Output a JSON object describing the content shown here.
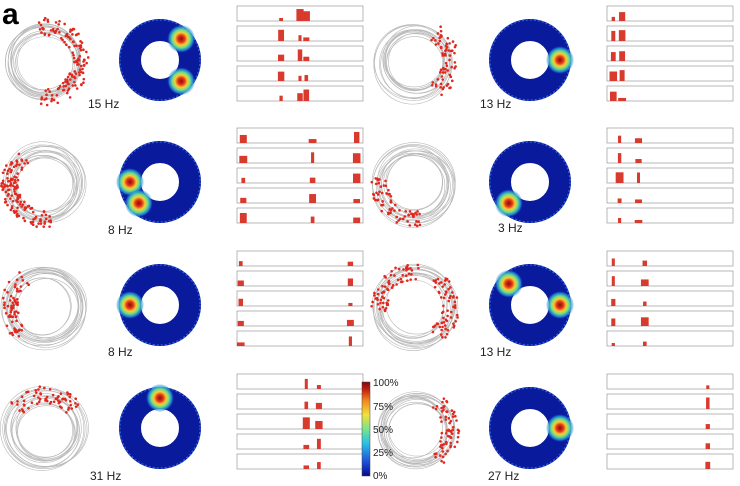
{
  "figure": {
    "panel_letter": "a",
    "colorbar_ticks": [
      "100%",
      "75%",
      "50%",
      "25%",
      "0%"
    ],
    "colors": {
      "trajectory": "#b8b8b8",
      "spikes": "#e0281f",
      "heatmap_background": "#0a1a9c",
      "histogram": "#d83a2e",
      "colorbar": [
        "#08088c",
        "#1f4fd8",
        "#29c3e6",
        "#7be38a",
        "#f2e23a",
        "#f08a1e",
        "#c81c12",
        "#7a0a06"
      ]
    },
    "cells": [
      {
        "rate": "15 Hz",
        "hotspots": [
          "upper-right",
          "lower-right"
        ],
        "hist_peaks": [
          0.35,
          0.5,
          0.55
        ]
      },
      {
        "rate": "13 Hz",
        "hotspots": [
          "right"
        ],
        "hist_peaks": [
          0.05,
          0.12
        ]
      },
      {
        "rate": "8 Hz",
        "hotspots": [
          "left",
          "lower-left"
        ],
        "hist_peaks": [
          0.05,
          0.6,
          0.95
        ]
      },
      {
        "rate": "3 Hz",
        "hotspots": [
          "lower-left"
        ],
        "hist_peaks": [
          0.1,
          0.25
        ]
      },
      {
        "rate": "8 Hz",
        "hotspots": [
          "left"
        ],
        "hist_peaks": [
          0.03,
          0.9
        ]
      },
      {
        "rate": "13 Hz",
        "hotspots": [
          "right",
          "upper-left"
        ],
        "hist_peaks": [
          0.05,
          0.3
        ]
      },
      {
        "rate": "31 Hz",
        "hotspots": [
          "top"
        ],
        "hist_peaks": [
          0.55,
          0.65
        ]
      },
      {
        "rate": "27 Hz",
        "hotspots": [
          "right"
        ],
        "hist_peaks": [
          0.8
        ]
      }
    ]
  }
}
